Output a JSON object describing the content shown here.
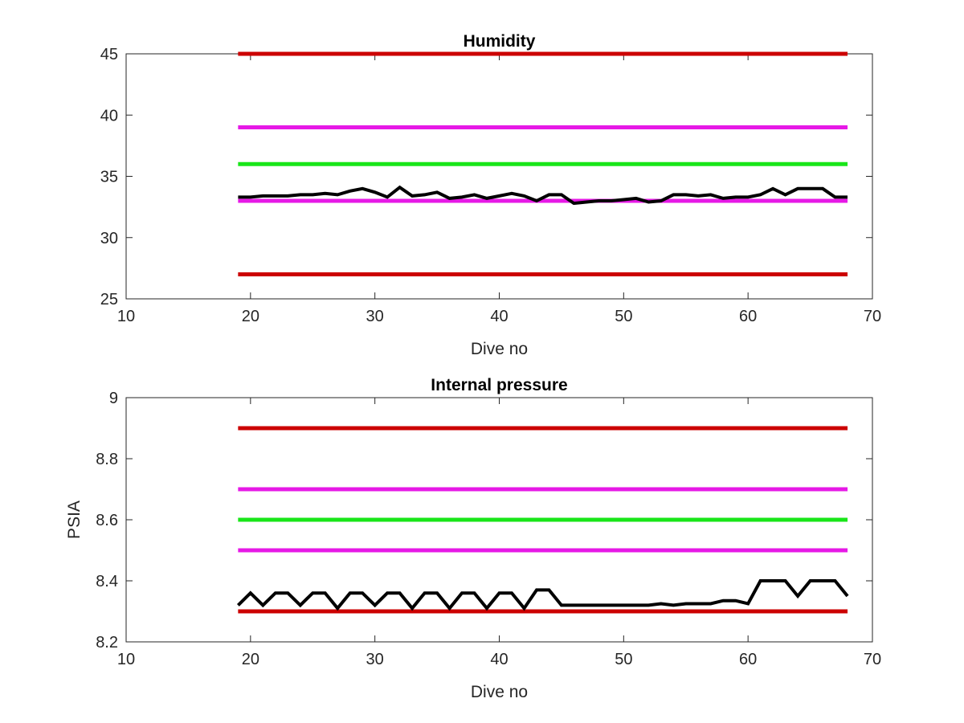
{
  "chart_data": [
    {
      "type": "line",
      "title": "Humidity",
      "xlabel": "Dive no",
      "ylabel": "",
      "xlim": [
        10,
        70
      ],
      "ylim": [
        25,
        45
      ],
      "xticks": [
        10,
        20,
        30,
        40,
        50,
        60,
        70
      ],
      "yticks": [
        25,
        30,
        35,
        40,
        45
      ],
      "grid": false,
      "threshold_lines": [
        {
          "y": 45,
          "x": [
            19,
            68
          ],
          "color": "#cc0000"
        },
        {
          "y": 39,
          "x": [
            19,
            68
          ],
          "color": "#e619e6"
        },
        {
          "y": 36,
          "x": [
            19,
            68
          ],
          "color": "#19e619"
        },
        {
          "y": 33,
          "x": [
            19,
            68
          ],
          "color": "#e619e6"
        },
        {
          "y": 27,
          "x": [
            19,
            68
          ],
          "color": "#cc0000"
        }
      ],
      "series": [
        {
          "color": "#000000",
          "x": [
            19,
            20,
            21,
            22,
            23,
            24,
            25,
            26,
            27,
            28,
            29,
            30,
            31,
            32,
            33,
            34,
            35,
            36,
            37,
            38,
            39,
            40,
            41,
            42,
            43,
            44,
            45,
            46,
            47,
            48,
            49,
            50,
            51,
            52,
            53,
            54,
            55,
            56,
            57,
            58,
            59,
            60,
            61,
            62,
            63,
            64,
            65,
            66,
            67,
            68
          ],
          "values": [
            33.3,
            33.3,
            33.4,
            33.4,
            33.4,
            33.5,
            33.5,
            33.6,
            33.5,
            33.8,
            34.0,
            33.7,
            33.3,
            34.1,
            33.4,
            33.5,
            33.7,
            33.2,
            33.3,
            33.5,
            33.2,
            33.4,
            33.6,
            33.4,
            33.0,
            33.5,
            33.5,
            32.8,
            32.9,
            33.0,
            33.0,
            33.1,
            33.2,
            32.9,
            33.0,
            33.5,
            33.5,
            33.4,
            33.5,
            33.2,
            33.3,
            33.3,
            33.5,
            34.0,
            33.5,
            34.0,
            34.0,
            34.0,
            33.3,
            33.3
          ]
        }
      ]
    },
    {
      "type": "line",
      "title": "Internal pressure",
      "xlabel": "Dive no",
      "ylabel": "PSIA",
      "xlim": [
        10,
        70
      ],
      "ylim": [
        8.2,
        9.0
      ],
      "xticks": [
        10,
        20,
        30,
        40,
        50,
        60,
        70
      ],
      "yticks": [
        8.2,
        8.4,
        8.6,
        8.8,
        9
      ],
      "ytick_labels": [
        "8.2",
        "8.4",
        "8.6",
        "8.8",
        "9"
      ],
      "grid": false,
      "threshold_lines": [
        {
          "y": 8.9,
          "x": [
            19,
            68
          ],
          "color": "#cc0000"
        },
        {
          "y": 8.7,
          "x": [
            19,
            68
          ],
          "color": "#e619e6"
        },
        {
          "y": 8.6,
          "x": [
            19,
            68
          ],
          "color": "#19e619"
        },
        {
          "y": 8.5,
          "x": [
            19,
            68
          ],
          "color": "#e619e6"
        },
        {
          "y": 8.3,
          "x": [
            19,
            68
          ],
          "color": "#cc0000"
        }
      ],
      "series": [
        {
          "color": "#000000",
          "x": [
            19,
            20,
            21,
            22,
            23,
            24,
            25,
            26,
            27,
            28,
            29,
            30,
            31,
            32,
            33,
            34,
            35,
            36,
            37,
            38,
            39,
            40,
            41,
            42,
            43,
            44,
            45,
            46,
            47,
            48,
            49,
            50,
            51,
            52,
            53,
            54,
            55,
            56,
            57,
            58,
            59,
            60,
            61,
            62,
            63,
            64,
            65,
            66,
            67,
            68
          ],
          "values": [
            8.32,
            8.36,
            8.32,
            8.36,
            8.36,
            8.32,
            8.36,
            8.36,
            8.31,
            8.36,
            8.36,
            8.32,
            8.36,
            8.36,
            8.31,
            8.36,
            8.36,
            8.31,
            8.36,
            8.36,
            8.31,
            8.36,
            8.36,
            8.31,
            8.37,
            8.37,
            8.32,
            8.32,
            8.32,
            8.32,
            8.32,
            8.32,
            8.32,
            8.32,
            8.325,
            8.32,
            8.325,
            8.325,
            8.325,
            8.335,
            8.335,
            8.325,
            8.4,
            8.4,
            8.4,
            8.35,
            8.4,
            8.4,
            8.4,
            8.35
          ]
        }
      ]
    }
  ]
}
